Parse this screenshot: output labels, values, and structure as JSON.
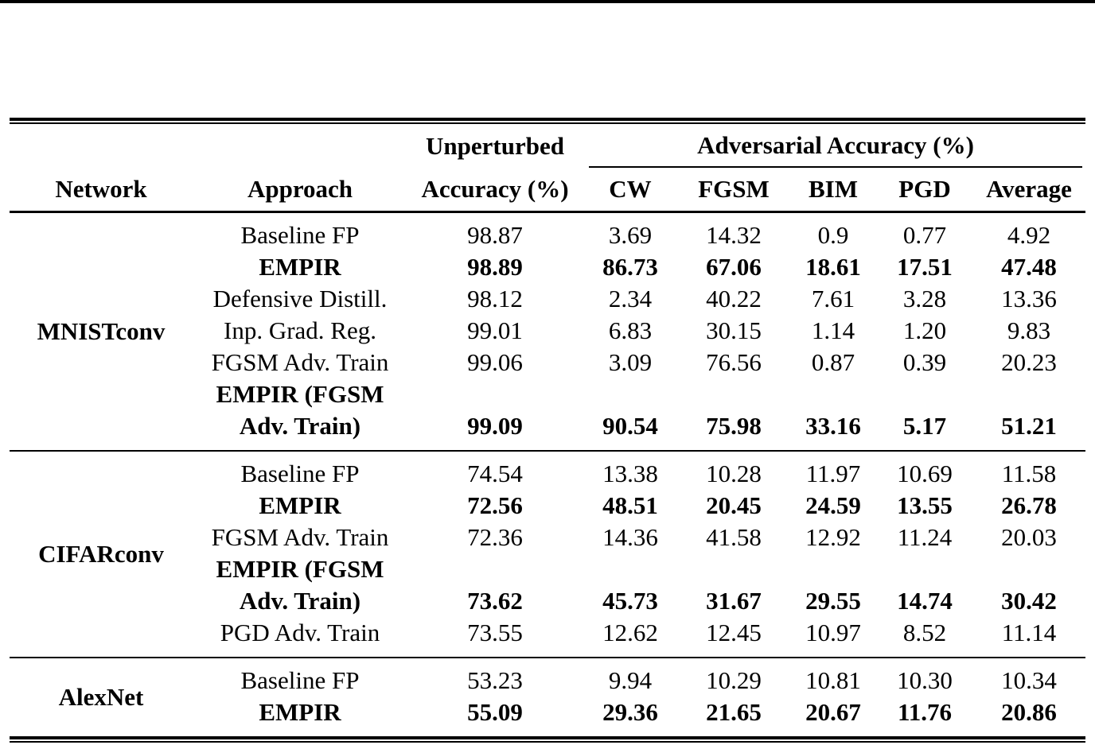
{
  "colors": {
    "text": "#000000",
    "background": "#ffffff",
    "rule": "#000000"
  },
  "table": {
    "header": {
      "network": "Network",
      "approach": "Approach",
      "unperturbed_line1": "Unperturbed",
      "unperturbed_line2": "Accuracy (%)",
      "adversarial_group": "Adversarial Accuracy (%)",
      "attack_columns": [
        "CW",
        "FGSM",
        "BIM",
        "PGD",
        "Average"
      ]
    },
    "sections": [
      {
        "network": "MNISTconv",
        "rows": [
          {
            "approach": "Baseline FP",
            "bold": false,
            "values": [
              "98.87",
              "3.69",
              "14.32",
              "0.9",
              "0.77",
              "4.92"
            ]
          },
          {
            "approach": "EMPIR",
            "bold": true,
            "values": [
              "98.89",
              "86.73",
              "67.06",
              "18.61",
              "17.51",
              "47.48"
            ]
          },
          {
            "approach": "Defensive Distill.",
            "bold": false,
            "values": [
              "98.12",
              "2.34",
              "40.22",
              "7.61",
              "3.28",
              "13.36"
            ]
          },
          {
            "approach": "Inp. Grad. Reg.",
            "bold": false,
            "values": [
              "99.01",
              "6.83",
              "30.15",
              "1.14",
              "1.20",
              "9.83"
            ]
          },
          {
            "approach": "FGSM Adv. Train",
            "bold": false,
            "values": [
              "99.06",
              "3.09",
              "76.56",
              "0.87",
              "0.39",
              "20.23"
            ]
          },
          {
            "approach_lines": [
              "EMPIR (FGSM",
              "Adv. Train)"
            ],
            "bold": true,
            "values": [
              "99.09",
              "90.54",
              "75.98",
              "33.16",
              "5.17",
              "51.21"
            ]
          }
        ]
      },
      {
        "network": "CIFARconv",
        "rows": [
          {
            "approach": "Baseline FP",
            "bold": false,
            "values": [
              "74.54",
              "13.38",
              "10.28",
              "11.97",
              "10.69",
              "11.58"
            ]
          },
          {
            "approach": "EMPIR",
            "bold": true,
            "values": [
              "72.56",
              "48.51",
              "20.45",
              "24.59",
              "13.55",
              "26.78"
            ]
          },
          {
            "approach": "FGSM Adv. Train",
            "bold": false,
            "values": [
              "72.36",
              "14.36",
              "41.58",
              "12.92",
              "11.24",
              "20.03"
            ]
          },
          {
            "approach_lines": [
              "EMPIR (FGSM",
              "Adv. Train)"
            ],
            "bold": true,
            "values": [
              "73.62",
              "45.73",
              "31.67",
              "29.55",
              "14.74",
              "30.42"
            ]
          },
          {
            "approach": "PGD Adv. Train",
            "bold": false,
            "values": [
              "73.55",
              "12.62",
              "12.45",
              "10.97",
              "8.52",
              "11.14"
            ]
          }
        ]
      },
      {
        "network": "AlexNet",
        "rows": [
          {
            "approach": "Baseline FP",
            "bold": false,
            "values": [
              "53.23",
              "9.94",
              "10.29",
              "10.81",
              "10.30",
              "10.34"
            ]
          },
          {
            "approach": "EMPIR",
            "bold": true,
            "values": [
              "55.09",
              "29.36",
              "21.65",
              "20.67",
              "11.76",
              "20.86"
            ]
          }
        ]
      }
    ]
  }
}
